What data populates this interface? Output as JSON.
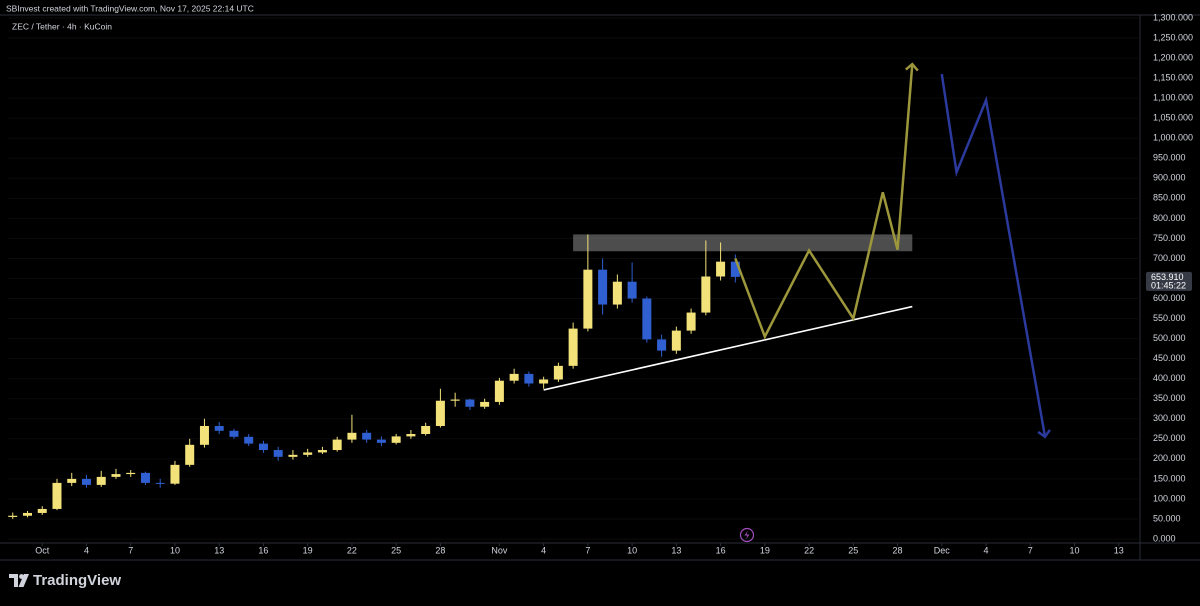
{
  "header": {
    "credit": "SBInvest created with TradingView.com, Nov 17, 2025 22:14 UTC"
  },
  "footer": {
    "brand": "TradingView"
  },
  "chart_data": {
    "type": "candlestick",
    "title": "ZEC / Tether · 4h · KuCoin",
    "x": [
      "Sep 29",
      "Sep 30",
      "Oct 1",
      "Oct 2",
      "Oct 3",
      "Oct 4",
      "Oct 5",
      "Oct 6",
      "Oct 7",
      "Oct 8",
      "Oct 9",
      "Oct 10",
      "Oct 11",
      "Oct 12",
      "Oct 13",
      "Oct 14",
      "Oct 15",
      "Oct 16",
      "Oct 17",
      "Oct 18",
      "Oct 19",
      "Oct 20",
      "Oct 21",
      "Oct 22",
      "Oct 23",
      "Oct 24",
      "Oct 25",
      "Oct 26",
      "Oct 27",
      "Oct 28",
      "Oct 29",
      "Oct 30",
      "Oct 31",
      "Nov 1",
      "Nov 2",
      "Nov 3",
      "Nov 4",
      "Nov 5",
      "Nov 6",
      "Nov 7",
      "Nov 8",
      "Nov 9",
      "Nov 10",
      "Nov 11",
      "Nov 12",
      "Nov 13",
      "Nov 14",
      "Nov 15",
      "Nov 16",
      "Nov 17"
    ],
    "open": [
      55,
      58,
      65,
      75,
      140,
      150,
      135,
      155,
      162,
      165,
      140,
      138,
      185,
      235,
      282,
      270,
      255,
      238,
      222,
      205,
      210,
      216,
      222,
      248,
      265,
      248,
      240,
      256,
      262,
      282,
      345,
      348,
      330,
      342,
      395,
      412,
      388,
      398,
      432,
      525,
      672,
      585,
      642,
      600,
      498,
      470,
      520,
      565,
      655,
      692
    ],
    "high": [
      66,
      70,
      82,
      150,
      165,
      160,
      170,
      175,
      172,
      168,
      150,
      195,
      250,
      300,
      292,
      275,
      262,
      245,
      230,
      222,
      225,
      230,
      255,
      310,
      272,
      256,
      262,
      272,
      290,
      375,
      365,
      350,
      350,
      402,
      425,
      418,
      405,
      440,
      540,
      760,
      700,
      660,
      690,
      605,
      510,
      530,
      575,
      745,
      740,
      710
    ],
    "low": [
      50,
      54,
      60,
      72,
      132,
      128,
      130,
      150,
      155,
      135,
      128,
      135,
      180,
      228,
      262,
      250,
      232,
      215,
      195,
      198,
      205,
      212,
      218,
      240,
      240,
      232,
      236,
      250,
      258,
      278,
      330,
      322,
      325,
      335,
      388,
      380,
      375,
      392,
      425,
      518,
      560,
      575,
      590,
      490,
      455,
      462,
      512,
      558,
      645,
      640
    ],
    "close": [
      58,
      65,
      75,
      140,
      150,
      135,
      155,
      162,
      165,
      140,
      138,
      185,
      235,
      282,
      270,
      255,
      238,
      222,
      205,
      210,
      216,
      222,
      248,
      265,
      248,
      240,
      256,
      262,
      282,
      345,
      348,
      330,
      342,
      395,
      412,
      388,
      398,
      432,
      525,
      672,
      585,
      642,
      600,
      498,
      470,
      520,
      565,
      655,
      692,
      654
    ],
    "up_color": "#f3e27a",
    "down_color": "#2f5fd0",
    "last_price": {
      "value": 653.91,
      "label": "653.910"
    },
    "countdown": "01:45:22",
    "xlim": [
      "Sep 28",
      "Dec 14"
    ],
    "xticks": [
      {
        "value": "Oct 1",
        "label": "Oct"
      },
      {
        "value": "Oct 4",
        "label": "4"
      },
      {
        "value": "Oct 7",
        "label": "7"
      },
      {
        "value": "Oct 10",
        "label": "10"
      },
      {
        "value": "Oct 13",
        "label": "13"
      },
      {
        "value": "Oct 16",
        "label": "16"
      },
      {
        "value": "Oct 19",
        "label": "19"
      },
      {
        "value": "Oct 22",
        "label": "22"
      },
      {
        "value": "Oct 25",
        "label": "25"
      },
      {
        "value": "Oct 28",
        "label": "28"
      },
      {
        "value": "Nov 1",
        "label": "Nov"
      },
      {
        "value": "Nov 4",
        "label": "4"
      },
      {
        "value": "Nov 7",
        "label": "7"
      },
      {
        "value": "Nov 10",
        "label": "10"
      },
      {
        "value": "Nov 13",
        "label": "13"
      },
      {
        "value": "Nov 16",
        "label": "16"
      },
      {
        "value": "Nov 19",
        "label": "19"
      },
      {
        "value": "Nov 22",
        "label": "22"
      },
      {
        "value": "Nov 25",
        "label": "25"
      },
      {
        "value": "Nov 28",
        "label": "28"
      },
      {
        "value": "Dec 1",
        "label": "Dec"
      },
      {
        "value": "Dec 4",
        "label": "4"
      },
      {
        "value": "Dec 7",
        "label": "7"
      },
      {
        "value": "Dec 10",
        "label": "10"
      },
      {
        "value": "Dec 13",
        "label": "13"
      }
    ],
    "ylim": [
      -10,
      1305
    ],
    "yticks": [
      {
        "value": 0,
        "label": "0.000"
      },
      {
        "value": 50,
        "label": "50.000"
      },
      {
        "value": 100,
        "label": "100.000"
      },
      {
        "value": 150,
        "label": "150.000"
      },
      {
        "value": 200,
        "label": "200.000"
      },
      {
        "value": 250,
        "label": "250.000"
      },
      {
        "value": 300,
        "label": "300.000"
      },
      {
        "value": 350,
        "label": "350.000"
      },
      {
        "value": 400,
        "label": "400.000"
      },
      {
        "value": 450,
        "label": "450.000"
      },
      {
        "value": 500,
        "label": "500.000"
      },
      {
        "value": 550,
        "label": "550.000"
      },
      {
        "value": 600,
        "label": "600.000"
      },
      {
        "value": 650,
        "label": "650.000"
      },
      {
        "value": 700,
        "label": "700.000"
      },
      {
        "value": 750,
        "label": "750.000"
      },
      {
        "value": 800,
        "label": "800.000"
      },
      {
        "value": 850,
        "label": "850.000"
      },
      {
        "value": 900,
        "label": "900.000"
      },
      {
        "value": 950,
        "label": "950.000"
      },
      {
        "value": 1000,
        "label": "1,000.000"
      },
      {
        "value": 1050,
        "label": "1,050.000"
      },
      {
        "value": 1100,
        "label": "1,100.000"
      },
      {
        "value": 1150,
        "label": "1,150.000"
      },
      {
        "value": 1200,
        "label": "1,200.000"
      },
      {
        "value": 1250,
        "label": "1,250.000"
      },
      {
        "value": 1300,
        "label": "1,300.000"
      }
    ],
    "zone": {
      "x": [
        "Nov 6",
        "Nov 29"
      ],
      "values": [
        718,
        760
      ],
      "color": "#b8b8b8"
    },
    "trendline": {
      "x": [
        "Nov 4",
        "Nov 29"
      ],
      "values": [
        372,
        580
      ],
      "color": "#ffffff"
    },
    "paths": [
      {
        "color": "#9d973c",
        "x": [
          "Nov 17",
          "Nov 19",
          "Nov 22",
          "Nov 25",
          "Nov 27",
          "Nov 28",
          "Nov 29"
        ],
        "values": [
          700,
          505,
          720,
          550,
          865,
          722,
          1185
        ]
      },
      {
        "color": "#2b3a9c",
        "x": [
          "Dec 1",
          "Dec 2",
          "Dec 4",
          "Dec 8"
        ],
        "values": [
          1160,
          915,
          1095,
          255
        ]
      }
    ]
  }
}
